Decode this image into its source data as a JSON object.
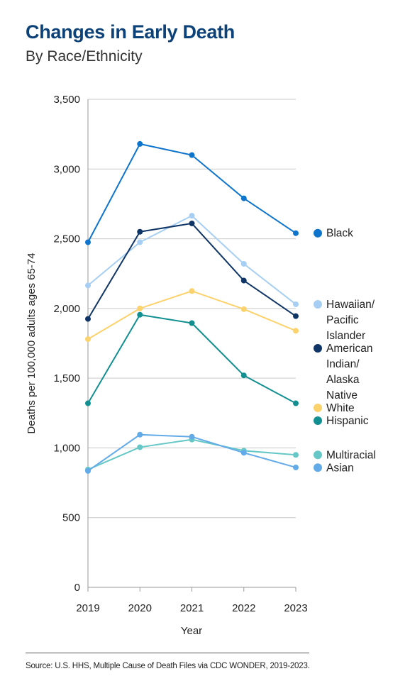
{
  "chart_data": {
    "type": "line",
    "title": "Changes in Early Death",
    "subtitle": "By Race/Ethnicity",
    "xlabel": "Year",
    "ylabel": "Deaths per 100,000 adults ages 65-74",
    "x": [
      "2019",
      "2020",
      "2021",
      "2022",
      "2023"
    ],
    "ylim": [
      0,
      3500
    ],
    "yticks": [
      0,
      500,
      1000,
      1500,
      2000,
      2500,
      3000,
      3500
    ],
    "ytick_labels": [
      "0",
      "500",
      "1,000",
      "1,500",
      "2,000",
      "2,500",
      "3,000",
      "3,500"
    ],
    "grid": true,
    "legend_position": "right",
    "series": [
      {
        "name": "Black",
        "legend_lines": [
          "Black"
        ],
        "color": "#0f75cc",
        "values": [
          2475,
          3180,
          3100,
          2790,
          2540
        ]
      },
      {
        "name": "Hawaiian/ Pacific Islander",
        "legend_lines": [
          "Hawaiian/",
          "Pacific",
          "Islander"
        ],
        "color": "#a7cff3",
        "values": [
          2165,
          2475,
          2665,
          2320,
          2030
        ]
      },
      {
        "name": "American Indian/ Alaska Native",
        "legend_lines": [
          "American",
          "Indian/",
          "Alaska",
          "Native"
        ],
        "color": "#0f3566",
        "values": [
          1925,
          2550,
          2610,
          2200,
          1945
        ]
      },
      {
        "name": "White",
        "legend_lines": [
          "White"
        ],
        "color": "#fcd26d",
        "values": [
          1780,
          2000,
          2125,
          1995,
          1840
        ]
      },
      {
        "name": "Hispanic",
        "legend_lines": [
          "Hispanic"
        ],
        "color": "#128f91",
        "values": [
          1320,
          1955,
          1895,
          1520,
          1320
        ]
      },
      {
        "name": "Multiracial",
        "legend_lines": [
          "Multiracial"
        ],
        "color": "#66c8c6",
        "values": [
          845,
          1005,
          1060,
          980,
          950
        ]
      },
      {
        "name": "Asian",
        "legend_lines": [
          "Asian"
        ],
        "color": "#63abe8",
        "values": [
          835,
          1095,
          1080,
          965,
          860
        ]
      }
    ]
  },
  "source": "Source: U.S. HHS, Multiple Cause of Death Files via CDC WONDER, 2019-2023."
}
